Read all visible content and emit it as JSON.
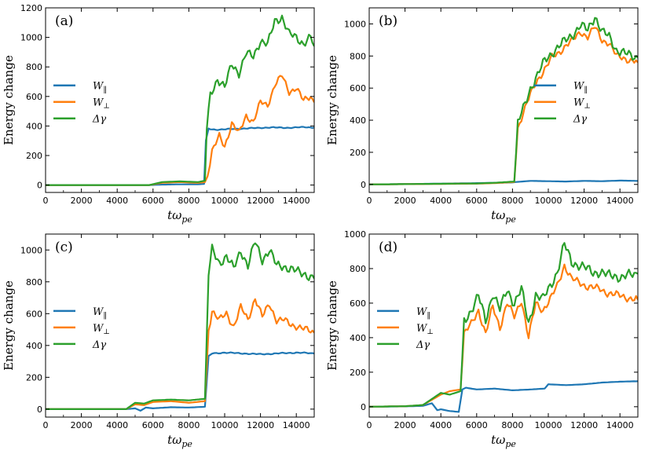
{
  "chart_data": [
    {
      "type": "line",
      "panel_label": "(a)",
      "xlabel": "tω",
      "xlabel_sub": "pe",
      "ylabel": "Energy change",
      "xlim": [
        0,
        15000
      ],
      "ylim": [
        -50,
        1200
      ],
      "xticks": [
        0,
        2000,
        4000,
        6000,
        8000,
        10000,
        12000,
        14000
      ],
      "yticks": [
        0,
        200,
        400,
        600,
        800,
        1000,
        1200
      ],
      "legend": "center-left",
      "series": [
        {
          "name": "W",
          "sub": "‖",
          "color": "#1f77b4",
          "x": [
            0,
            5800,
            6500,
            7500,
            8500,
            8850,
            8950,
            9100,
            9500,
            10500,
            11500,
            12500,
            13500,
            14500,
            15000
          ],
          "y": [
            0,
            0,
            3,
            5,
            5,
            8,
            300,
            380,
            375,
            380,
            385,
            390,
            388,
            392,
            390
          ]
        },
        {
          "name": "W",
          "sub": "⊥",
          "color": "#ff7f0e",
          "x": [
            0,
            5800,
            6500,
            7500,
            8500,
            8900,
            9050,
            9300,
            9700,
            10000,
            10400,
            10800,
            11200,
            11600,
            12000,
            12400,
            12800,
            13200,
            13600,
            14000,
            14400,
            14800,
            15000
          ],
          "y": [
            0,
            0,
            15,
            20,
            15,
            20,
            60,
            230,
            330,
            260,
            420,
            350,
            470,
            430,
            560,
            540,
            680,
            740,
            630,
            660,
            570,
            600,
            560
          ]
        },
        {
          "name": "Δγ",
          "sub": "",
          "color": "#2ca02c",
          "x": [
            0,
            5800,
            6500,
            7500,
            8500,
            8900,
            9000,
            9200,
            9600,
            10000,
            10400,
            10800,
            11200,
            11600,
            12000,
            12400,
            12800,
            13200,
            13600,
            14000,
            14400,
            14800,
            15000
          ],
          "y": [
            0,
            0,
            20,
            25,
            20,
            30,
            380,
            610,
            720,
            660,
            820,
            760,
            890,
            870,
            980,
            950,
            1110,
            1140,
            1020,
            1000,
            960,
            1000,
            940
          ]
        }
      ]
    },
    {
      "type": "line",
      "panel_label": "(b)",
      "xlabel": "tω",
      "xlabel_sub": "pe",
      "ylabel": "Energy change",
      "xlim": [
        0,
        15000
      ],
      "ylim": [
        -50,
        1100
      ],
      "xticks": [
        0,
        2000,
        4000,
        6000,
        8000,
        10000,
        12000,
        14000
      ],
      "yticks": [
        0,
        200,
        400,
        600,
        800,
        1000
      ],
      "legend": "center-right",
      "series": [
        {
          "name": "W",
          "sub": "‖",
          "color": "#1f77b4",
          "x": [
            0,
            2000,
            4000,
            6000,
            7000,
            8000,
            8200,
            9000,
            10000,
            11000,
            12000,
            13000,
            14000,
            15000
          ],
          "y": [
            0,
            2,
            5,
            8,
            10,
            12,
            15,
            22,
            20,
            18,
            22,
            20,
            24,
            22
          ]
        },
        {
          "name": "W",
          "sub": "⊥",
          "color": "#ff7f0e",
          "x": [
            0,
            6000,
            7000,
            8100,
            8300,
            8600,
            9000,
            9400,
            9800,
            10200,
            10600,
            11000,
            11400,
            11800,
            12200,
            12600,
            13000,
            13400,
            13800,
            14200,
            14600,
            15000
          ],
          "y": [
            0,
            5,
            8,
            15,
            350,
            450,
            560,
            650,
            720,
            790,
            820,
            870,
            900,
            950,
            920,
            980,
            900,
            880,
            800,
            790,
            770,
            760
          ]
        },
        {
          "name": "Δγ",
          "sub": "",
          "color": "#2ca02c",
          "x": [
            0,
            6000,
            7000,
            8100,
            8300,
            8600,
            9000,
            9400,
            9800,
            10200,
            10600,
            11000,
            11400,
            11800,
            12200,
            12600,
            13000,
            13400,
            13800,
            14200,
            14600,
            15000
          ],
          "y": [
            0,
            6,
            10,
            18,
            380,
            470,
            600,
            680,
            770,
            820,
            860,
            900,
            940,
            990,
            960,
            1050,
            950,
            920,
            840,
            820,
            800,
            790
          ]
        }
      ]
    },
    {
      "type": "line",
      "panel_label": "(c)",
      "xlabel": "tω",
      "xlabel_sub": "pe",
      "ylabel": "Energy change",
      "xlim": [
        0,
        15000
      ],
      "ylim": [
        -50,
        1100
      ],
      "xticks": [
        0,
        2000,
        4000,
        6000,
        8000,
        10000,
        12000,
        14000
      ],
      "yticks": [
        0,
        200,
        400,
        600,
        800,
        1000
      ],
      "legend": "center-left",
      "series": [
        {
          "name": "W",
          "sub": "‖",
          "color": "#1f77b4",
          "x": [
            0,
            4500,
            5000,
            5300,
            5600,
            6000,
            7000,
            8000,
            8900,
            9100,
            9300,
            10000,
            11000,
            12000,
            13000,
            14000,
            15000
          ],
          "y": [
            0,
            0,
            5,
            -10,
            10,
            5,
            12,
            10,
            15,
            330,
            350,
            355,
            350,
            345,
            350,
            355,
            350
          ]
        },
        {
          "name": "W",
          "sub": "⊥",
          "color": "#ff7f0e",
          "x": [
            0,
            4500,
            5000,
            5500,
            6000,
            7000,
            8000,
            8900,
            9100,
            9300,
            9700,
            10100,
            10500,
            10900,
            11300,
            11700,
            12100,
            12500,
            12900,
            13300,
            13700,
            14100,
            14500,
            15000
          ],
          "y": [
            0,
            0,
            30,
            25,
            45,
            50,
            40,
            50,
            500,
            620,
            560,
            600,
            520,
            640,
            560,
            700,
            580,
            660,
            560,
            560,
            530,
            520,
            500,
            480
          ]
        },
        {
          "name": "Δγ",
          "sub": "",
          "color": "#2ca02c",
          "x": [
            0,
            4500,
            5000,
            5500,
            6000,
            7000,
            8000,
            8900,
            9100,
            9300,
            9700,
            10100,
            10500,
            10900,
            11300,
            11700,
            12100,
            12500,
            12900,
            13300,
            13700,
            14100,
            14500,
            15000
          ],
          "y": [
            0,
            0,
            40,
            35,
            55,
            60,
            55,
            65,
            850,
            1000,
            920,
            960,
            880,
            1000,
            900,
            1050,
            940,
            1000,
            900,
            900,
            880,
            860,
            850,
            820
          ]
        }
      ]
    },
    {
      "type": "line",
      "panel_label": "(d)",
      "xlabel": "tω",
      "xlabel_sub": "pe",
      "ylabel": "Energy change",
      "xlim": [
        0,
        15000
      ],
      "ylim": [
        -60,
        1000
      ],
      "xticks": [
        0,
        2000,
        4000,
        6000,
        8000,
        10000,
        12000,
        14000
      ],
      "yticks": [
        0,
        200,
        400,
        600,
        800,
        1000
      ],
      "legend": "center-left",
      "series": [
        {
          "name": "W",
          "sub": "‖",
          "color": "#1f77b4",
          "x": [
            0,
            2000,
            3000,
            3500,
            3800,
            4000,
            4500,
            5000,
            5200,
            5400,
            6000,
            7000,
            8000,
            9000,
            9800,
            10000,
            11000,
            12000,
            13000,
            14000,
            15000
          ],
          "y": [
            0,
            2,
            5,
            20,
            -20,
            -15,
            -25,
            -30,
            100,
            110,
            100,
            105,
            95,
            100,
            105,
            130,
            125,
            130,
            140,
            145,
            148
          ]
        },
        {
          "name": "W",
          "sub": "⊥",
          "color": "#ff7f0e",
          "x": [
            0,
            2000,
            3000,
            3500,
            4000,
            4500,
            5100,
            5300,
            5700,
            6100,
            6500,
            6900,
            7300,
            7700,
            8100,
            8500,
            8900,
            9300,
            9700,
            10100,
            10500,
            10900,
            11300,
            11700,
            12100,
            12500,
            12900,
            13300,
            13700,
            14100,
            14500,
            15000
          ],
          "y": [
            0,
            3,
            10,
            40,
            70,
            90,
            100,
            420,
            480,
            560,
            420,
            580,
            460,
            600,
            520,
            620,
            400,
            600,
            560,
            620,
            700,
            820,
            740,
            720,
            700,
            690,
            680,
            660,
            650,
            640,
            630,
            620
          ]
        },
        {
          "name": "Δγ",
          "sub": "",
          "color": "#2ca02c",
          "x": [
            0,
            2000,
            3000,
            3500,
            4000,
            4500,
            5100,
            5300,
            5700,
            6100,
            6500,
            6900,
            7300,
            7700,
            8100,
            8500,
            8900,
            9300,
            9700,
            10100,
            10500,
            10900,
            11300,
            11700,
            12100,
            12500,
            12900,
            13300,
            13700,
            14100,
            14500,
            15000
          ],
          "y": [
            0,
            3,
            10,
            45,
            80,
            70,
            90,
            500,
            560,
            640,
            500,
            660,
            560,
            680,
            600,
            680,
            480,
            650,
            620,
            700,
            780,
            940,
            840,
            820,
            800,
            780,
            780,
            760,
            760,
            750,
            760,
            770
          ]
        }
      ]
    }
  ]
}
